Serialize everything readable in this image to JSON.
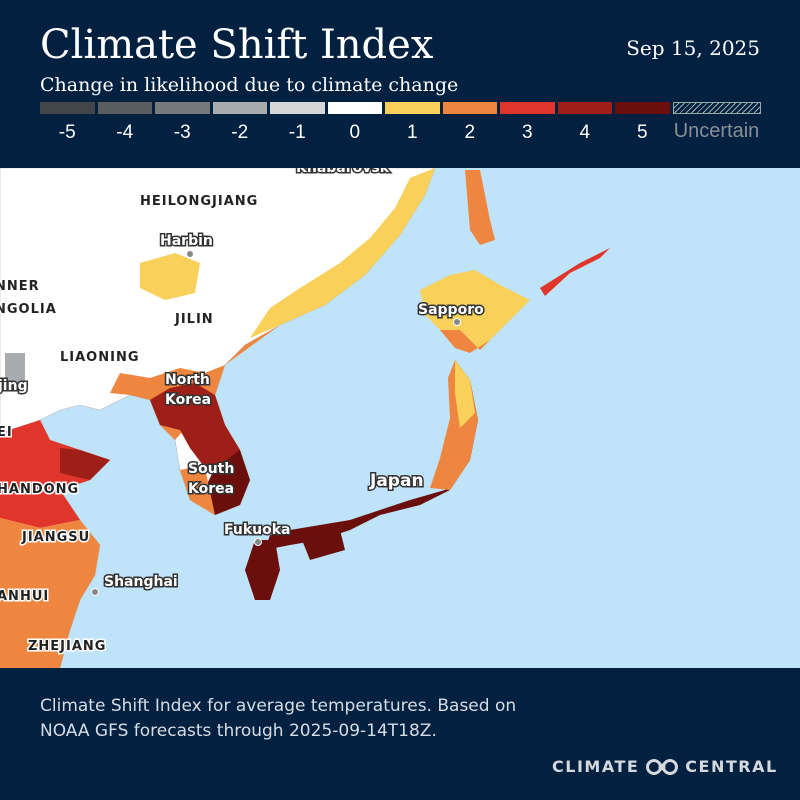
{
  "header": {
    "title": "Climate Shift Index",
    "date": "Sep 15, 2025",
    "subtitle": "Change in likelihood due to climate change"
  },
  "legend": {
    "items": [
      {
        "label": "-5",
        "color": "#434649"
      },
      {
        "label": "-4",
        "color": "#5b5e61"
      },
      {
        "label": "-3",
        "color": "#76797b"
      },
      {
        "label": "-2",
        "color": "#a9acaf"
      },
      {
        "label": "-1",
        "color": "#d6d6d6"
      },
      {
        "label": "0",
        "color": "#ffffff"
      },
      {
        "label": "1",
        "color": "#f8d05a"
      },
      {
        "label": "2",
        "color": "#ef8640"
      },
      {
        "label": "3",
        "color": "#e0352a"
      },
      {
        "label": "4",
        "color": "#9e1f17"
      },
      {
        "label": "5",
        "color": "#6a0f0c"
      }
    ],
    "uncertain": "Uncertain"
  },
  "map": {
    "regions": [
      "HEILONGJIANG",
      "NNER",
      "NGOLIA",
      "JILIN",
      "LIAONING",
      "EI",
      "HANDONG",
      "JIANGSU",
      "ANHUI",
      "ZHEJIANG"
    ],
    "cities": [
      "Khabarovsk",
      "Harbin",
      "Sapporo",
      "jing",
      "North",
      "Korea",
      "South",
      "Korea",
      "Fukuoka",
      "Japan",
      "Shanghai"
    ]
  },
  "footer": {
    "text": "Climate Shift Index for average temperatures. Based on NOAA GFS forecasts through 2025-09-14T18Z.",
    "logo": "CLIMATE CENTRAL"
  }
}
